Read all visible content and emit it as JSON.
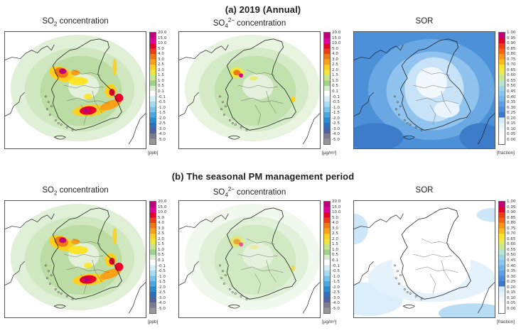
{
  "sections": [
    {
      "title": "(a) 2019 (Annual)",
      "panels": [
        {
          "title_main": "SO",
          "title_sub": "2",
          "title_sup": "",
          "title_rest": " concentration",
          "unit": "[ppb]",
          "scheme": "diverging",
          "ticks": [
            "20.0",
            "15.0",
            "10.0",
            "5.0",
            "4.0",
            "3.0",
            "2.5",
            "2.0",
            "1.5",
            "1.0",
            "0.5",
            "0.1",
            "-0.1",
            "-0.5",
            "-1.0",
            "-1.5",
            "-2.0",
            "-2.5",
            "-3.0",
            "-4.0",
            "-5.0"
          ]
        },
        {
          "title_main": "SO",
          "title_sub": "4",
          "title_sup": "2−",
          "title_rest": " concentration",
          "unit": "[μg/m³]",
          "scheme": "diverging",
          "ticks": [
            "20.0",
            "15.0",
            "10.0",
            "5.0",
            "4.0",
            "3.0",
            "2.5",
            "2.0",
            "1.5",
            "1.0",
            "0.5",
            "0.1",
            "-0.1",
            "-0.5",
            "-1.0",
            "-1.5",
            "-2.0",
            "-2.5",
            "-3.0",
            "-4.0",
            "-5.0"
          ]
        },
        {
          "title_main": "SOR",
          "title_sub": "",
          "title_sup": "",
          "title_rest": "",
          "unit": "[fraction]",
          "scheme": "sequential",
          "ticks": [
            "1.00",
            "0.95",
            "0.90",
            "0.85",
            "0.80",
            "0.75",
            "0.70",
            "0.65",
            "0.60",
            "0.55",
            "0.50",
            "0.45",
            "0.40",
            "0.35",
            "0.30",
            "0.25",
            "0.20",
            "0.15",
            "0.10",
            "0.05",
            "0.00"
          ]
        }
      ]
    },
    {
      "title": "(b) The seasonal PM management period",
      "panels": [
        {
          "title_main": "SO",
          "title_sub": "2",
          "title_sup": "",
          "title_rest": " concentration",
          "unit": "[ppb]",
          "scheme": "diverging",
          "ticks": [
            "20.0",
            "15.0",
            "10.0",
            "5.0",
            "4.0",
            "3.0",
            "2.5",
            "2.0",
            "1.5",
            "1.0",
            "0.5",
            "0.1",
            "-0.1",
            "-0.5",
            "-1.0",
            "-1.5",
            "-2.0",
            "-2.5",
            "-3.0",
            "-4.0",
            "-5.0"
          ]
        },
        {
          "title_main": "SO",
          "title_sub": "4",
          "title_sup": "2−",
          "title_rest": " concentration",
          "unit": "[μg/m³]",
          "scheme": "diverging",
          "ticks": [
            "20.0",
            "15.0",
            "10.0",
            "5.0",
            "4.0",
            "3.0",
            "2.5",
            "2.0",
            "1.5",
            "1.0",
            "0.5",
            "0.1",
            "-0.1",
            "-0.5",
            "-1.0",
            "-1.5",
            "-2.0",
            "-2.5",
            "-3.0",
            "-4.0",
            "-5.0"
          ]
        },
        {
          "title_main": "SOR",
          "title_sub": "",
          "title_sup": "",
          "title_rest": "",
          "unit": "[fraction]",
          "scheme": "sequential",
          "ticks": [
            "1.00",
            "0.95",
            "0.90",
            "0.85",
            "0.80",
            "0.75",
            "0.70",
            "0.65",
            "0.60",
            "0.55",
            "0.50",
            "0.45",
            "0.40",
            "0.35",
            "0.30",
            "0.25",
            "0.20",
            "0.15",
            "0.10",
            "0.05",
            "0.00"
          ]
        }
      ]
    }
  ],
  "colors": {
    "diverging": [
      "#c0007a",
      "#e0009a",
      "#e8002a",
      "#f03c14",
      "#f07814",
      "#f8a018",
      "#fcd020",
      "#f0e640",
      "#c8e68c",
      "#a0d28c",
      "#d8ecd0",
      "#ffffff",
      "#d4eef8",
      "#a8dcf4",
      "#78c4ec",
      "#4ca8e0",
      "#2c8cd0",
      "#3070b8",
      "#5060a0",
      "#7c7c90",
      "#969696"
    ],
    "sequential": [
      "#c0007a",
      "#e0002a",
      "#f03c14",
      "#f86414",
      "#fc9418",
      "#fcbc1c",
      "#fce428",
      "#e8e85c",
      "#c8e68c",
      "#b8e4d8",
      "#9cd4ec",
      "#88c8f0",
      "#70b4ec",
      "#5ca0e4",
      "#4c8cd8",
      "#3c78cc",
      "#d8ecfc",
      "#e8f4fc",
      "#f4fafe",
      "#ffffff",
      "#ffffff"
    ]
  }
}
